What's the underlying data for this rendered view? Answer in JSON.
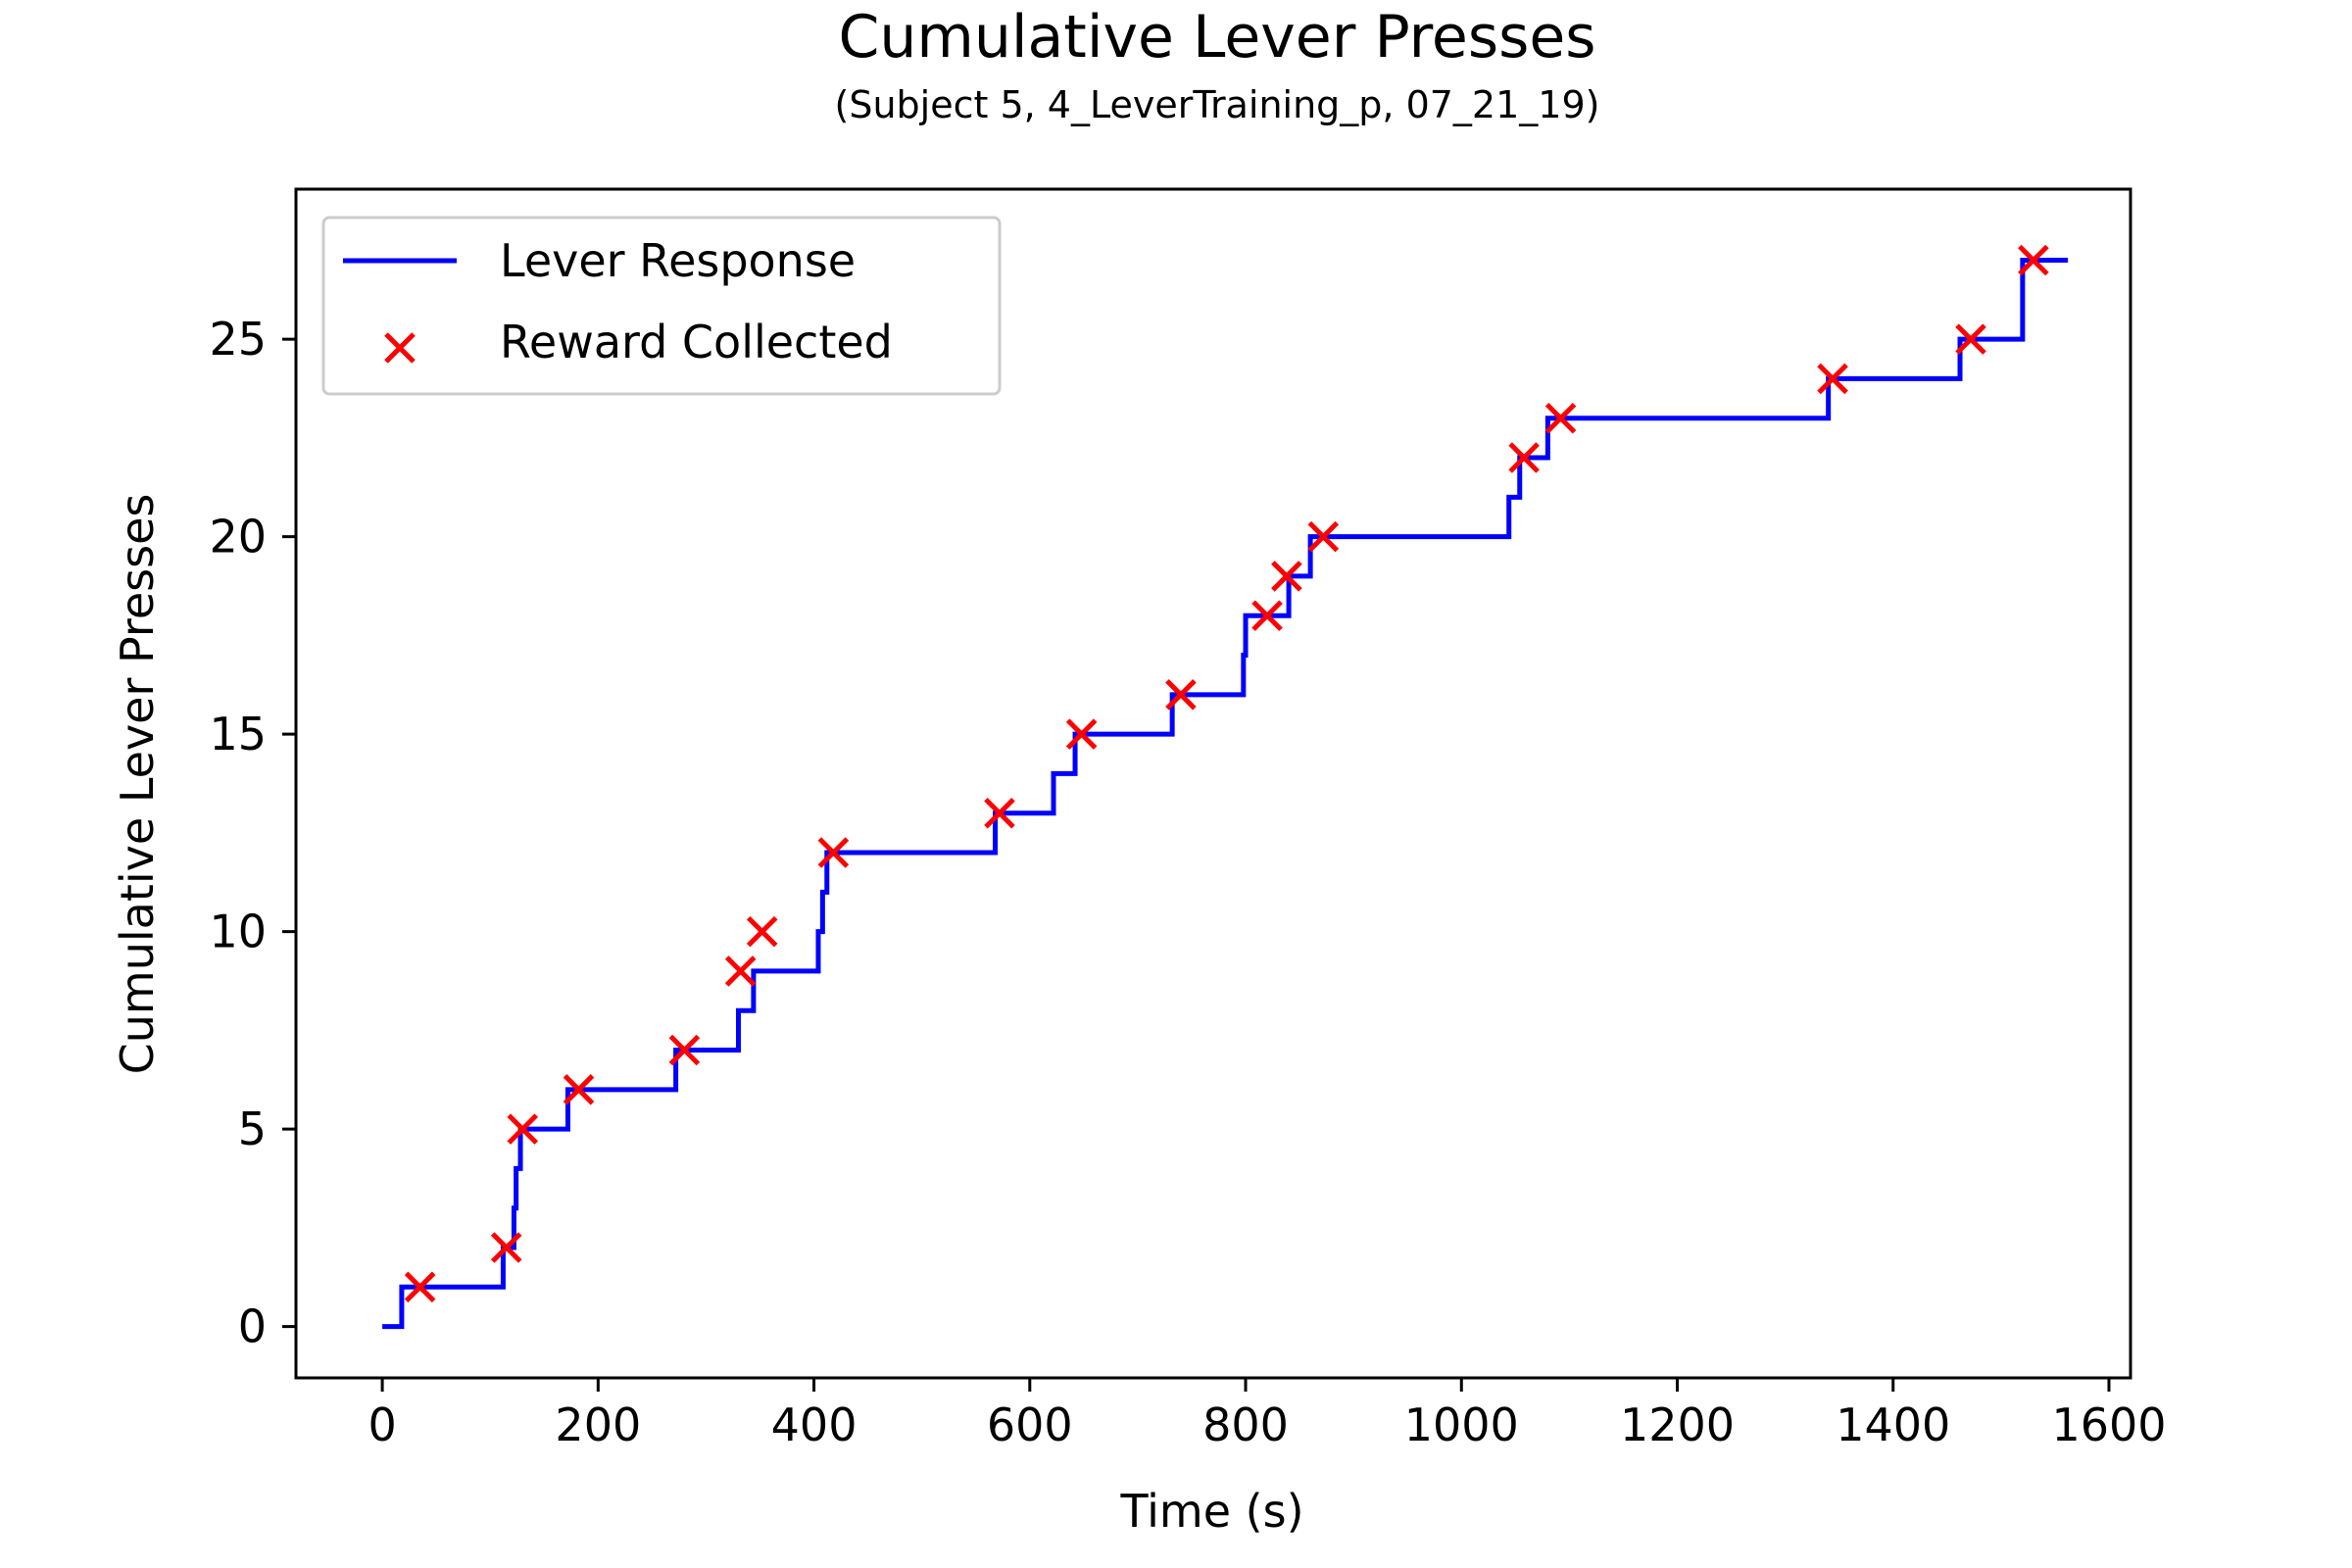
{
  "chart_data": {
    "type": "line",
    "title": "Cumulative Lever Presses",
    "subtitle": "(Subject 5, 4_LeverTraining_p, 07_21_19)",
    "xlabel": "Time (s)",
    "ylabel": "Cumulative Lever Presses",
    "xlim": [
      -80,
      1620
    ],
    "ylim": [
      -1.3,
      28.8
    ],
    "xticks": [
      0,
      200,
      400,
      600,
      800,
      1000,
      1200,
      1400,
      1600
    ],
    "yticks": [
      0,
      5,
      10,
      15,
      20,
      25
    ],
    "grid": false,
    "legend": {
      "placement": "top-left",
      "entries": [
        "Lever Response",
        "Reward Collected"
      ]
    },
    "series": [
      {
        "name": "Lever Response",
        "kind": "step",
        "color": "#0000ff",
        "x": [
          0,
          18,
          112,
          122,
          124,
          128,
          172,
          272,
          330,
          344,
          404,
          408,
          412,
          568,
          622,
          642,
          732,
          798,
          800,
          802,
          840,
          860,
          1044,
          1054,
          1080,
          1340,
          1462,
          1520,
          1562
        ],
        "y": [
          0,
          1,
          2,
          3,
          4,
          5,
          6,
          7,
          8,
          9,
          10,
          11,
          12,
          13,
          14,
          15,
          16,
          17,
          18,
          18,
          19,
          20,
          21,
          22,
          23,
          24,
          25,
          27,
          27
        ]
      },
      {
        "name": "Reward Collected",
        "kind": "scatter",
        "marker": "x",
        "color": "#ff0000",
        "x": [
          35,
          115,
          130,
          182,
          280,
          332,
          352,
          418,
          572,
          648,
          740,
          820,
          838,
          872,
          1058,
          1092,
          1344,
          1472,
          1530
        ],
        "y": [
          1,
          2,
          5,
          6,
          7,
          9,
          10,
          12,
          13,
          15,
          16,
          18,
          19,
          20,
          22,
          23,
          24,
          25,
          27
        ]
      }
    ]
  }
}
